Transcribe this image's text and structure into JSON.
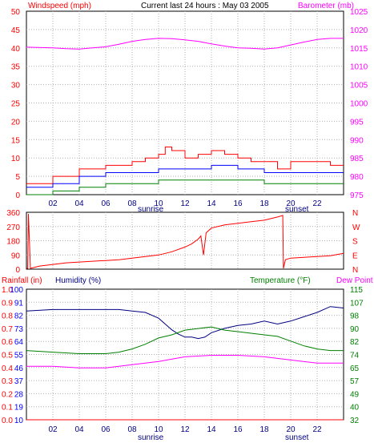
{
  "header": {
    "left_label": "Windspeed (mph)",
    "center_label": "Current last 24 hours : May 03 2005",
    "right_label": "Barometer (mb)"
  },
  "colors": {
    "wind": "#ff0000",
    "gust": "#ff0000",
    "wind_avg": "#0000ff",
    "wind_min": "#008000",
    "barometer": "#ff00ff",
    "direction": "#ff0000",
    "humidity": "#000080",
    "temperature": "#008000",
    "dew_point": "#ff00ff",
    "rainfall": "#ff0000",
    "axis_left_1": "#ff0000",
    "axis_right_1": "#ff00ff",
    "axis_left_2": "#ff0000",
    "axis_right_2": "#ff0000",
    "axis_left_3": "#0000ff",
    "axis_right_3": "#008000",
    "grid": "#b0b0b0"
  },
  "x_axis": {
    "hour_labels": [
      "02",
      "04",
      "06",
      "08",
      "10",
      "12",
      "14",
      "16",
      "18",
      "20",
      "22"
    ],
    "sunrise_label": "sunrise",
    "sunset_label": "sunset"
  },
  "panel1": {
    "left_ticks": [
      "50",
      "45",
      "40",
      "35",
      "30",
      "25",
      "20",
      "15",
      "10",
      "5",
      "0"
    ],
    "right_ticks": [
      "1025",
      "1020",
      "1015",
      "1010",
      "1005",
      "1000",
      "995",
      "990",
      "985",
      "980",
      "975"
    ]
  },
  "panel2": {
    "left_ticks": [
      "360",
      "270",
      "180",
      "90",
      "0"
    ],
    "right_ticks": [
      "N",
      "W",
      "S",
      "E",
      "N"
    ]
  },
  "panel3": {
    "rain_label": "Rainfall (in)",
    "humidity_label": "Humidity (%)",
    "temp_label": "Temperature (°F)",
    "dew_label": "Dew Point",
    "rain_ticks": [
      "1.0",
      "0.9",
      "0.8",
      "0.7",
      "0.6",
      "0.5",
      "0.4",
      "0.3",
      "0.2",
      "0.1",
      "0.0"
    ],
    "humidity_ticks": [
      "100",
      "91",
      "82",
      "73",
      "64",
      "55",
      "46",
      "37",
      "28",
      "19",
      "10"
    ],
    "temp_ticks": [
      "115",
      "107",
      "98",
      "90",
      "82",
      "74",
      "65",
      "57",
      "49",
      "40",
      "32"
    ]
  },
  "chart_data": [
    {
      "type": "line",
      "title": "Current last 24 hours : May 03 2005",
      "xlabel": "",
      "ylabel": "Windspeed (mph)",
      "y2label": "Barometer (mb)",
      "xlim": [
        0,
        24
      ],
      "ylim": [
        0,
        50
      ],
      "y2lim": [
        975,
        1025
      ],
      "series": [
        {
          "name": "Windspeed (mph)",
          "axis": "left",
          "x": [
            0,
            2,
            4,
            6,
            8,
            9,
            10,
            10.5,
            11,
            12,
            13,
            14,
            15,
            16,
            17,
            18,
            19,
            20,
            21,
            22,
            23,
            24
          ],
          "values": [
            3,
            5,
            7,
            8,
            9,
            10,
            11,
            13,
            12,
            10,
            11,
            12,
            11,
            10,
            9,
            9,
            7,
            9,
            9,
            9,
            8,
            8
          ]
        },
        {
          "name": "Windspeed (mph)",
          "axis": "left",
          "x": [
            0,
            2,
            4,
            6,
            8,
            10,
            12,
            14,
            16,
            18,
            20,
            22,
            24
          ],
          "values": [
            2,
            3,
            5,
            6,
            6,
            7,
            7,
            8,
            7,
            6,
            6,
            6,
            6
          ]
        },
        {
          "name": "Windspeed (mph)",
          "axis": "left",
          "x": [
            0,
            2,
            4,
            6,
            8,
            10,
            12,
            14,
            16,
            18,
            20,
            22,
            24
          ],
          "values": [
            0,
            1,
            2,
            3,
            3,
            4,
            4,
            4,
            4,
            3,
            3,
            3,
            3
          ]
        },
        {
          "name": "Barometer (mb)",
          "axis": "right",
          "x": [
            0,
            2,
            3,
            4,
            5,
            6,
            7,
            8,
            9,
            10,
            11,
            12,
            13,
            14,
            15,
            16,
            17,
            18,
            19,
            20,
            21,
            22,
            23,
            24
          ],
          "values": [
            1015.2,
            1015,
            1014.8,
            1014.7,
            1015,
            1015.3,
            1016,
            1016.8,
            1017.3,
            1017.6,
            1017.5,
            1017.2,
            1016.8,
            1016.1,
            1015.5,
            1015,
            1014.9,
            1014.7,
            1015,
            1015.8,
            1016.6,
            1017.3,
            1017.6,
            1017.6
          ]
        }
      ]
    },
    {
      "type": "line",
      "xlabel": "",
      "ylabel": "",
      "xlim": [
        0,
        24
      ],
      "ylim": [
        0,
        360
      ],
      "series": [
        {
          "name": "",
          "x": [
            0,
            0.1,
            0.15,
            0.3,
            1,
            2,
            3,
            4,
            5,
            6,
            7,
            8,
            9,
            10,
            10.5,
            11,
            12,
            12.5,
            13,
            13.2,
            13.4,
            13.6,
            14,
            15,
            16,
            17,
            18,
            19,
            19.4,
            19.45,
            19.6,
            20,
            21,
            22,
            23,
            24
          ],
          "values": [
            5,
            5,
            350,
            5,
            20,
            30,
            40,
            45,
            50,
            55,
            60,
            70,
            80,
            90,
            100,
            110,
            140,
            160,
            190,
            210,
            90,
            230,
            260,
            280,
            290,
            300,
            310,
            330,
            340,
            5,
            60,
            70,
            75,
            80,
            85,
            100
          ]
        }
      ]
    },
    {
      "type": "line",
      "xlabel": "",
      "ylabel": "Humidity (%)",
      "y2label": "Temperature (°F)",
      "xlim": [
        0,
        24
      ],
      "ylim": [
        10,
        100
      ],
      "y2lim": [
        32,
        115
      ],
      "series": [
        {
          "name": "Humidity (%)",
          "axis": "left",
          "x": [
            0,
            2,
            4,
            5,
            6,
            7,
            8,
            9,
            10,
            10.5,
            11,
            11.5,
            12,
            12.5,
            13,
            13.5,
            14,
            15,
            16,
            17,
            18,
            19,
            20,
            21,
            22,
            23,
            24
          ],
          "values": [
            85,
            86,
            86,
            86,
            86,
            86,
            85,
            84,
            80,
            76,
            72,
            69,
            67,
            67,
            66,
            67,
            70,
            73,
            75,
            76,
            78,
            76,
            78,
            81,
            84,
            88,
            87
          ]
        },
        {
          "name": "Temperature (°F)",
          "axis": "right",
          "x": [
            0,
            2,
            4,
            6,
            7,
            8,
            9,
            10,
            11,
            12,
            13,
            14,
            15,
            16,
            17,
            18,
            19,
            20,
            21,
            22,
            23,
            24
          ],
          "values": [
            76,
            75,
            74,
            74,
            75,
            77,
            80,
            84,
            86,
            89,
            90,
            91,
            89,
            88,
            87,
            86,
            85,
            82,
            79,
            77,
            76,
            76
          ]
        },
        {
          "name": "Dew Point",
          "axis": "right",
          "x": [
            0,
            2,
            4,
            6,
            8,
            10,
            12,
            14,
            16,
            18,
            20,
            22,
            24
          ],
          "values": [
            66,
            66,
            65,
            65,
            67,
            69,
            72,
            73,
            73,
            72,
            70,
            68,
            68
          ]
        },
        {
          "name": "Rainfall (in)",
          "axis": "left2",
          "x": [
            0,
            24
          ],
          "values": [
            0,
            0
          ]
        }
      ]
    }
  ]
}
